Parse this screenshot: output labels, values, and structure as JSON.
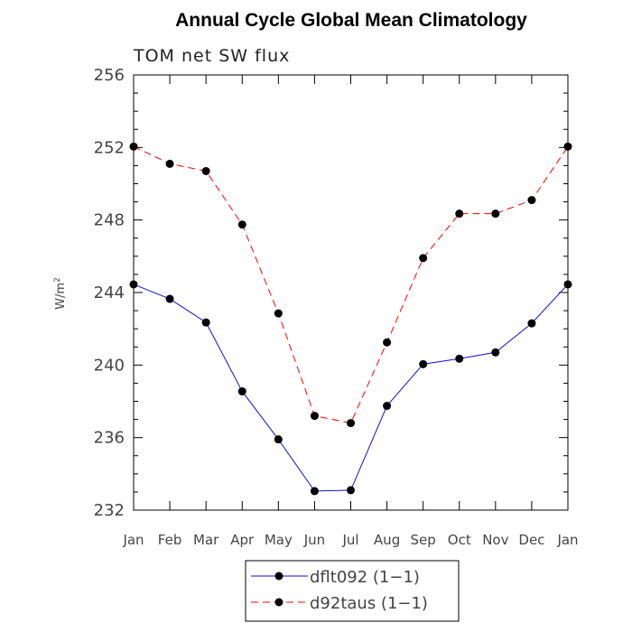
{
  "chart_data": {
    "type": "line",
    "title": "Annual Cycle Global Mean Climatology",
    "subtitle": "TOM net SW flux",
    "xlabel": "",
    "ylabel": "W/m",
    "ylabel_sup": "2",
    "ylim": [
      232,
      256
    ],
    "yticks": [
      232,
      236,
      240,
      244,
      248,
      252,
      256
    ],
    "yticks_labels": [
      "232",
      "236",
      "240",
      "244",
      "248",
      "252",
      "256"
    ],
    "categories": [
      "Jan",
      "Feb",
      "Mar",
      "Apr",
      "May",
      "Jun",
      "Jul",
      "Aug",
      "Sep",
      "Oct",
      "Nov",
      "Dec",
      "Jan"
    ],
    "series": [
      {
        "name": "dflt092 (1-1)",
        "legend_label": "dflt092 (1−1)",
        "color": "#1010d0",
        "dash": "solid",
        "values": [
          244.45,
          243.65,
          242.35,
          238.55,
          235.9,
          233.05,
          233.1,
          237.75,
          240.05,
          240.35,
          240.7,
          242.3,
          244.45
        ]
      },
      {
        "name": "d92taus (1-1)",
        "legend_label": "d92taus (1−1)",
        "color": "#ff0000",
        "dash": "dashed",
        "values": [
          252.05,
          251.1,
          250.7,
          247.75,
          242.85,
          237.2,
          236.8,
          241.25,
          245.9,
          248.35,
          248.35,
          249.1,
          252.05
        ]
      }
    ],
    "legend_position": "bottom-center",
    "grid": false
  }
}
